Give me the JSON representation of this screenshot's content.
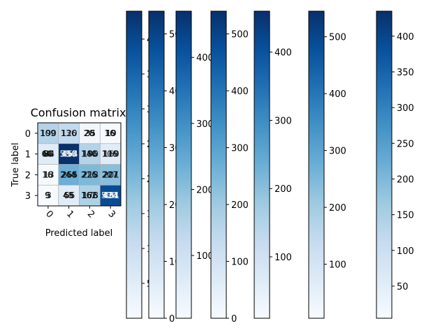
{
  "chart_data": {
    "type": "heatmap",
    "title": "Confusion matrix",
    "xlabel": "Predicted label",
    "ylabel": "True label",
    "x_ticks": [
      "0",
      "1",
      "2",
      "3"
    ],
    "y_ticks": [
      "0",
      "1",
      "2",
      "3"
    ],
    "colormap": "Blues",
    "grid": true,
    "matrix": [
      [
        150,
        130,
        20,
        10
      ],
      [
        60,
        480,
        150,
        60
      ],
      [
        10,
        240,
        220,
        207
      ],
      [
        5,
        60,
        160,
        430
      ]
    ],
    "overlapping_cell_labels": [
      [
        [
          "109",
          "190"
        ],
        [
          "136",
          "120"
        ],
        [
          "26",
          "28",
          "35"
        ],
        [
          "16",
          "10",
          "19"
        ]
      ],
      [
        [
          "60",
          "66",
          "80",
          "84"
        ],
        [
          "534",
          "396",
          "453",
          "454"
        ],
        [
          "140",
          "186",
          "190"
        ],
        [
          "106",
          "119",
          "160"
        ]
      ],
      [
        [
          "16",
          "18",
          "13"
        ],
        [
          "244",
          "268",
          "255"
        ],
        [
          "216",
          "225",
          "218"
        ],
        [
          "207",
          "227",
          "201"
        ]
      ],
      [
        [
          "9",
          "5",
          "3"
        ],
        [
          "48",
          "65",
          "56"
        ],
        [
          "162",
          "166",
          "178"
        ],
        [
          "530",
          "424",
          "434",
          "451"
        ]
      ]
    ],
    "colorbars": [
      {
        "range": [
          0,
          440
        ],
        "ticks": [
          "50",
          "100",
          "150",
          "200",
          "250",
          "300",
          "350",
          "400"
        ]
      },
      {
        "range": [
          0,
          540
        ],
        "ticks": [
          "0",
          "100",
          "200",
          "300",
          "400",
          "500"
        ]
      },
      {
        "range": [
          5,
          470
        ],
        "ticks": [
          "100",
          "200",
          "300",
          "400"
        ]
      },
      {
        "range": [
          0,
          540
        ],
        "ticks": [
          "0",
          "100",
          "200",
          "300",
          "400",
          "500"
        ]
      },
      {
        "range": [
          10,
          460
        ],
        "ticks": [
          "100",
          "200",
          "300",
          "400"
        ]
      },
      {
        "range": [
          5,
          545
        ],
        "ticks": [
          "100",
          "200",
          "300",
          "400",
          "500"
        ]
      },
      {
        "range": [
          5,
          435
        ],
        "ticks": [
          "50",
          "100",
          "150",
          "200",
          "250",
          "300",
          "350",
          "400"
        ]
      }
    ]
  }
}
